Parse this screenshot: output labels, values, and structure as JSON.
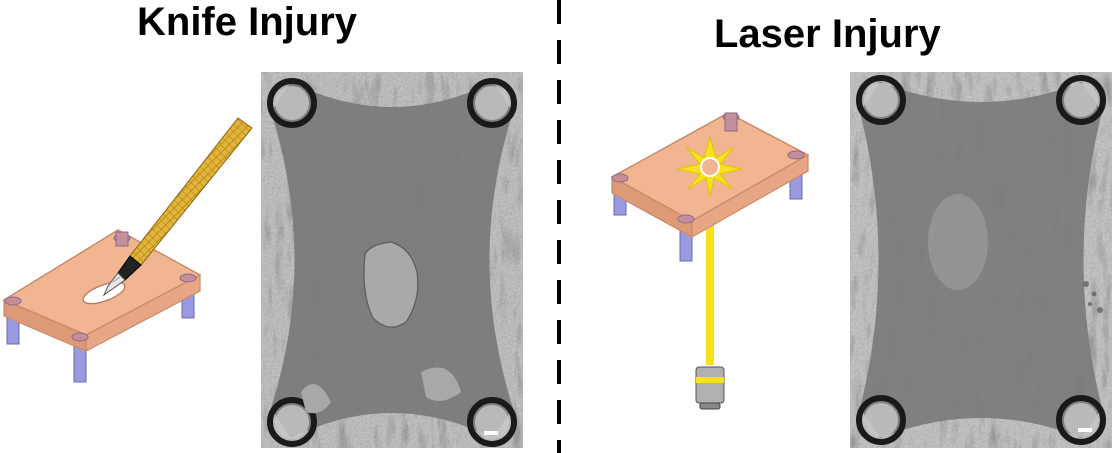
{
  "panels": {
    "knife": {
      "title": "Knife Injury",
      "tool_icon": "scalpel-icon",
      "device_icon": "micropillar-platform-icon"
    },
    "laser": {
      "title": "Laser Injury",
      "tool_icon": "laser-objective-icon",
      "device_icon": "micropillar-platform-icon"
    }
  },
  "colors": {
    "platform_fill": "#f2b592",
    "platform_edge": "#c98a6a",
    "pillar": "#8e8ed6",
    "pillar_cap": "#b87a8a",
    "knife_handle": "#e2b53a",
    "laser_beam": "#f5e21c",
    "tissue_gray": "#8c8c8c",
    "divider": "#000000"
  }
}
